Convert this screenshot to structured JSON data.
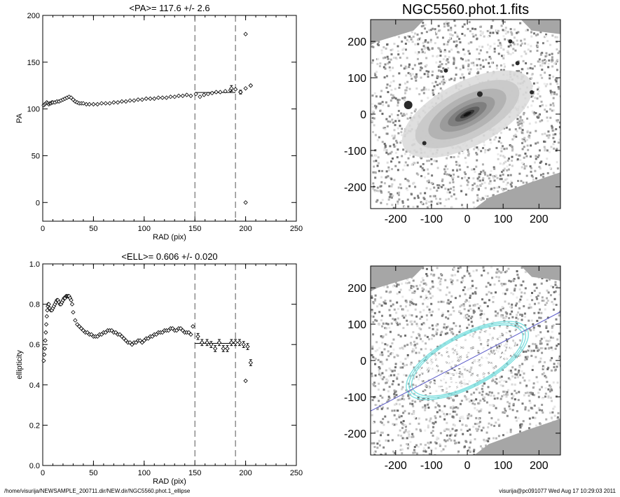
{
  "chart_data": [
    {
      "type": "scatter",
      "title": "<PA>= 117.6 +/-   2.6",
      "xlabel": "RAD (pix)",
      "ylabel": "PA",
      "xlim": [
        0,
        250
      ],
      "ylim": [
        -20,
        200
      ],
      "xticks": [
        0,
        50,
        100,
        150,
        200,
        250
      ],
      "yticks": [
        0,
        50,
        100,
        150,
        200
      ],
      "vlines": [
        150,
        190
      ],
      "fit_line": {
        "x": [
          150,
          190
        ],
        "y": 117.6
      },
      "points": {
        "x": [
          1,
          2,
          3,
          4,
          5,
          6,
          7,
          8,
          9,
          10,
          12,
          14,
          16,
          18,
          20,
          22,
          24,
          26,
          28,
          30,
          32,
          34,
          36,
          38,
          40,
          43,
          46,
          50,
          54,
          58,
          62,
          66,
          70,
          74,
          78,
          82,
          86,
          90,
          94,
          98,
          102,
          106,
          110,
          114,
          118,
          122,
          126,
          130,
          134,
          138,
          142,
          146,
          151,
          155,
          159,
          163,
          167,
          171,
          175,
          180,
          185,
          190,
          195,
          200,
          205
        ],
        "y": [
          104,
          105,
          106,
          107,
          106,
          105,
          106,
          106,
          107,
          107,
          107,
          108,
          108,
          109,
          110,
          111,
          112,
          113,
          112,
          110,
          108,
          107,
          106,
          106,
          106,
          105,
          105,
          105,
          105,
          106,
          106,
          106,
          107,
          107,
          108,
          108,
          109,
          109,
          110,
          110,
          111,
          111,
          111,
          112,
          112,
          112,
          113,
          113,
          114,
          114,
          115,
          114,
          116,
          113,
          115,
          116,
          117,
          118,
          118,
          119,
          120,
          121,
          118,
          122,
          125
        ]
      },
      "error_points": [
        {
          "x": 186,
          "y": 122,
          "err": 3
        },
        {
          "x": 195,
          "y": 118,
          "err": 2
        }
      ],
      "outliers": [
        {
          "x": 200,
          "y": 180
        },
        {
          "x": 200,
          "y": 0
        },
        {
          "x": 205,
          "y": 125
        }
      ]
    },
    {
      "type": "scatter",
      "title": "<ELL>= 0.606 +/-  0.020",
      "xlabel": "RAD (pix)",
      "ylabel": "ellipticity",
      "xlim": [
        0,
        250
      ],
      "ylim": [
        0,
        1
      ],
      "xticks": [
        0,
        50,
        100,
        150,
        200,
        250
      ],
      "yticks": [
        "0.0",
        "0.2",
        "0.4",
        "0.6",
        "0.8",
        "1.0"
      ],
      "vlines": [
        150,
        190
      ],
      "fit_line": {
        "x": [
          150,
          190
        ],
        "y": 0.606
      },
      "points": {
        "x": [
          1,
          1.5,
          2,
          2.5,
          3,
          3.5,
          4,
          4.5,
          5,
          5.5,
          6,
          7,
          8,
          9,
          10,
          11,
          12,
          13,
          14,
          15,
          16,
          17,
          18,
          19,
          20,
          21,
          22,
          23,
          24,
          25,
          26,
          27,
          28,
          29,
          30,
          32,
          34,
          36,
          38,
          40,
          42,
          44,
          46,
          48,
          50,
          52,
          54,
          56,
          58,
          60,
          62,
          64,
          66,
          68,
          70,
          72,
          74,
          76,
          78,
          80,
          82,
          84,
          86,
          88,
          90,
          92,
          94,
          96,
          98,
          100,
          102,
          104,
          106,
          108,
          110,
          112,
          114,
          116,
          118,
          120,
          122,
          124,
          126,
          128,
          130,
          132,
          134,
          136,
          138,
          140,
          142,
          144,
          146,
          148
        ],
        "y": [
          0.52,
          0.55,
          0.58,
          0.62,
          0.66,
          0.7,
          0.74,
          0.77,
          0.79,
          0.8,
          0.8,
          0.78,
          0.77,
          0.77,
          0.78,
          0.79,
          0.8,
          0.81,
          0.82,
          0.82,
          0.81,
          0.8,
          0.8,
          0.81,
          0.82,
          0.83,
          0.83,
          0.84,
          0.84,
          0.84,
          0.84,
          0.83,
          0.82,
          0.8,
          0.76,
          0.72,
          0.7,
          0.69,
          0.68,
          0.67,
          0.66,
          0.66,
          0.65,
          0.65,
          0.64,
          0.64,
          0.64,
          0.65,
          0.65,
          0.66,
          0.66,
          0.67,
          0.67,
          0.67,
          0.66,
          0.66,
          0.65,
          0.65,
          0.64,
          0.63,
          0.62,
          0.61,
          0.61,
          0.6,
          0.61,
          0.61,
          0.62,
          0.62,
          0.61,
          0.62,
          0.63,
          0.63,
          0.64,
          0.64,
          0.65,
          0.65,
          0.66,
          0.66,
          0.66,
          0.67,
          0.67,
          0.67,
          0.68,
          0.68,
          0.67,
          0.67,
          0.68,
          0.68,
          0.67,
          0.66,
          0.66,
          0.66,
          0.65,
          0.69
        ]
      },
      "error_points": [
        {
          "x": 153,
          "y": 0.64,
          "err": 0.015
        },
        {
          "x": 157,
          "y": 0.61,
          "err": 0.015
        },
        {
          "x": 162,
          "y": 0.61,
          "err": 0.015
        },
        {
          "x": 166,
          "y": 0.6,
          "err": 0.015
        },
        {
          "x": 170,
          "y": 0.58,
          "err": 0.015
        },
        {
          "x": 174,
          "y": 0.61,
          "err": 0.015
        },
        {
          "x": 178,
          "y": 0.58,
          "err": 0.015
        },
        {
          "x": 182,
          "y": 0.58,
          "err": 0.015
        },
        {
          "x": 186,
          "y": 0.61,
          "err": 0.015
        },
        {
          "x": 190,
          "y": 0.61,
          "err": 0.015
        },
        {
          "x": 194,
          "y": 0.61,
          "err": 0.015
        },
        {
          "x": 198,
          "y": 0.6,
          "err": 0.015
        },
        {
          "x": 202,
          "y": 0.59,
          "err": 0.015
        },
        {
          "x": 205,
          "y": 0.51,
          "err": 0.015
        }
      ],
      "outliers": [
        {
          "x": 200,
          "y": 0.42
        }
      ]
    },
    {
      "type": "image",
      "title": "NGC5560.phot.1.fits",
      "xlim": [
        -270,
        260
      ],
      "ylim": [
        -260,
        260
      ],
      "xticks": [
        -200,
        -100,
        0,
        100,
        200
      ],
      "yticks": [
        -200,
        -100,
        0,
        100,
        200
      ]
    },
    {
      "type": "image",
      "title": "",
      "xlim": [
        -270,
        260
      ],
      "ylim": [
        -260,
        260
      ],
      "xticks": [
        -200,
        -100,
        0,
        100,
        200
      ],
      "yticks": [
        -200,
        -100,
        0,
        100,
        200
      ],
      "major_axis_pa_deg": 117.6,
      "contour_ellipse_ratio": 0.394
    }
  ],
  "footer": {
    "left": "/home/visurija/NEWSAMPLE_200711.dir/NEW.dir/NGC5560.phot.1_ellipse",
    "right": "visurija@pc091077  Wed Aug 17 10:29:03 2011"
  },
  "colors": {
    "contour_outer": "#7fe0e0",
    "contour_inner": "#ffffff",
    "axis_line": "#5a5ac8",
    "sky_mask": "#a6a6a6"
  }
}
